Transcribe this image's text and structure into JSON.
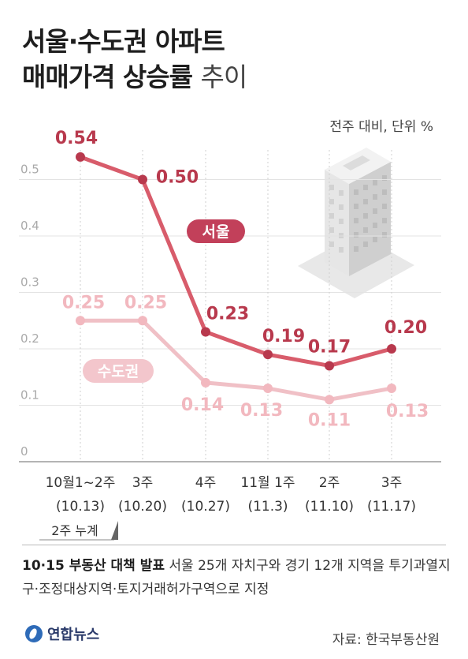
{
  "title": {
    "line1": "서울·수도권 아파트",
    "line2_bold": "매매가격 상승률",
    "line2_light": "추이"
  },
  "unit": "전주 대비, 단위 %",
  "chart_data": {
    "type": "line",
    "categories": [
      {
        "top": "10월1~2주",
        "bottom": "(10.13)"
      },
      {
        "top": "3주",
        "bottom": "(10.20)"
      },
      {
        "top": "4주",
        "bottom": "(10.27)"
      },
      {
        "top": "11월 1주",
        "bottom": "(11.3)"
      },
      {
        "top": "2주",
        "bottom": "(11.10)"
      },
      {
        "top": "3주",
        "bottom": "(11.17)"
      }
    ],
    "yticks": [
      "0",
      "0.1",
      "0.2",
      "0.3",
      "0.4",
      "0.5"
    ],
    "ylim": [
      0,
      0.6
    ],
    "grid": true,
    "series": [
      {
        "name": "서울",
        "values": [
          0.54,
          0.5,
          0.23,
          0.19,
          0.17,
          0.2
        ],
        "labels": [
          "0.54",
          "0.50",
          "0.23",
          "0.19",
          "0.17",
          "0.20"
        ],
        "color": "#d85c6b",
        "label_color": "#b8394d"
      },
      {
        "name": "수도권",
        "values": [
          0.25,
          0.25,
          0.14,
          0.13,
          0.11,
          0.13
        ],
        "labels": [
          "0.25",
          "0.25",
          "0.14",
          "0.13",
          "0.11",
          "0.13"
        ],
        "color": "#f0c0c6",
        "label_color": "#f2b8bf"
      }
    ],
    "annotation": "2주 누계"
  },
  "note": {
    "bold": "10·15 부동산 대책 발표",
    "text": " 서울 25개 자치구와 경기 12개 지역을 투기과열지구·조정대상지역·토지거래허가구역으로 지정"
  },
  "logo": "연합뉴스",
  "source": "자료: 한국부동산원"
}
